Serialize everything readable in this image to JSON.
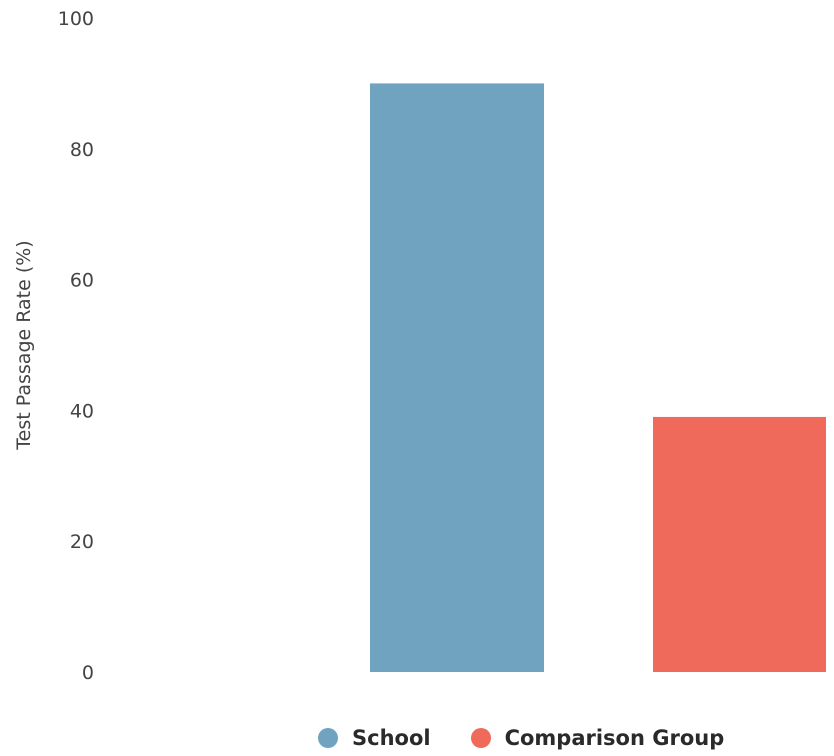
{
  "chart_data": {
    "type": "bar",
    "categories": [
      "School",
      "Comparison Group"
    ],
    "values": [
      90,
      39
    ],
    "ylabel": "Test Passage Rate (%)",
    "xlabel": "",
    "ylim": [
      0,
      100
    ],
    "yticks": [
      "0",
      "20",
      "40",
      "60",
      "80",
      "100"
    ],
    "grid": false,
    "legend": "bottom"
  },
  "legend": {
    "items": [
      {
        "label": "School",
        "color": "#6fa3c0"
      },
      {
        "label": "Comparison Group",
        "color": "#ef6a5a"
      }
    ]
  },
  "colors": {
    "School": "#6fa3c0",
    "Comparison Group": "#ef6a5a",
    "text": "#444444"
  }
}
